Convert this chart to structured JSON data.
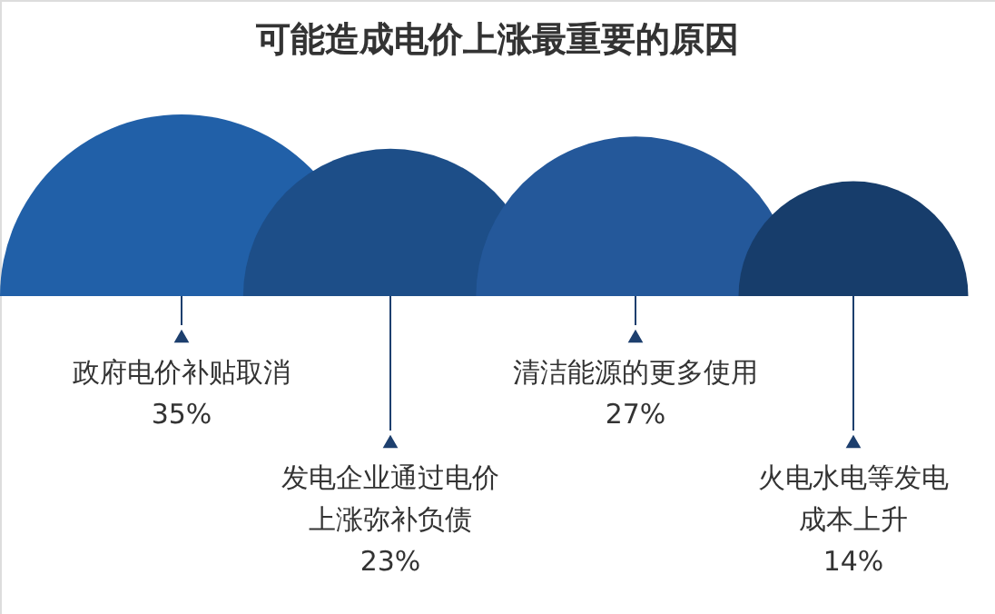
{
  "chart_data": {
    "type": "other",
    "title": "可能造成电价上涨最重要的原因",
    "categories": [
      "政府电价补贴取消",
      "发电企业通过电价上涨弥补负债",
      "清洁能源的更多使用",
      "火电水电等发电成本上升"
    ],
    "values": [
      35,
      23,
      27,
      14
    ],
    "value_labels": [
      "35%",
      "23%",
      "27%",
      "14%"
    ],
    "colors": [
      "#2160a8",
      "#1d4e88",
      "#24589a",
      "#173d6b"
    ]
  }
}
